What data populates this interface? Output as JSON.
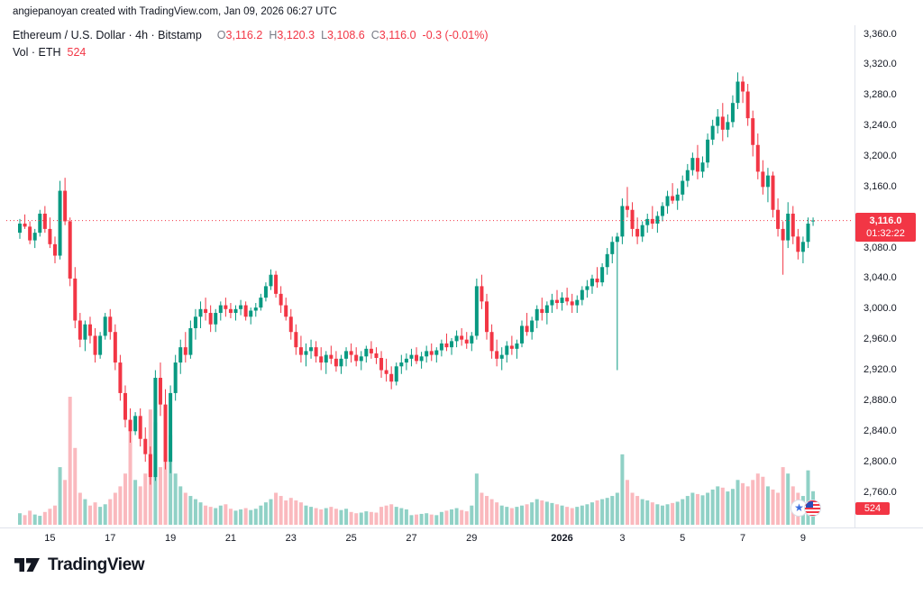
{
  "attribution": "angiepanoyan created with TradingView.com, Jan 09, 2026 06:27 UTC",
  "legend": {
    "title": "Ethereum / U.S. Dollar · 4h · Bitstamp",
    "ohlc": {
      "o_label": "O",
      "o": "3,116.2",
      "h_label": "H",
      "h": "3,120.3",
      "l_label": "L",
      "l": "3,108.6",
      "c_label": "C",
      "c": "3,116.0",
      "change": "-0.3 (-0.01%)"
    },
    "vol_label": "Vol · ETH",
    "vol_value": "524"
  },
  "price_scale": {
    "current_label": "3,116.0",
    "countdown": "01:32:22",
    "vol_badge": "524"
  },
  "footer": {
    "logo_text": "TradingView"
  },
  "chart_data": {
    "type": "candlestick",
    "title": "Ethereum / U.S. Dollar",
    "interval": "4h",
    "exchange": "Bitstamp",
    "current_price": 3116.0,
    "ylim": [
      2760,
      3360
    ],
    "grid": false,
    "colors": {
      "up": "#089981",
      "down": "#f23645",
      "vol_up": "rgba(8,153,129,0.45)",
      "vol_down": "rgba(242,54,69,0.35)",
      "line": "#f23645"
    },
    "price_ticks": [
      {
        "label": "3,360.0",
        "value": 3360
      },
      {
        "label": "3,320.0",
        "value": 3320
      },
      {
        "label": "3,280.0",
        "value": 3280
      },
      {
        "label": "3,240.0",
        "value": 3240
      },
      {
        "label": "3,200.0",
        "value": 3200
      },
      {
        "label": "3,160.0",
        "value": 3160
      },
      {
        "label": "3,120.0",
        "value": 3120
      },
      {
        "label": "3,080.0",
        "value": 3080
      },
      {
        "label": "3,040.0",
        "value": 3040
      },
      {
        "label": "3,000.0",
        "value": 3000
      },
      {
        "label": "2,960.0",
        "value": 2960
      },
      {
        "label": "2,920.0",
        "value": 2920
      },
      {
        "label": "2,880.0",
        "value": 2880
      },
      {
        "label": "2,840.0",
        "value": 2840
      },
      {
        "label": "2,800.0",
        "value": 2800
      },
      {
        "label": "2,760.0",
        "value": 2760
      }
    ],
    "time_ticks": [
      {
        "label": "15",
        "idx": 6,
        "bold": false
      },
      {
        "label": "17",
        "idx": 18,
        "bold": false
      },
      {
        "label": "19",
        "idx": 30,
        "bold": false
      },
      {
        "label": "21",
        "idx": 42,
        "bold": false
      },
      {
        "label": "23",
        "idx": 54,
        "bold": false
      },
      {
        "label": "25",
        "idx": 66,
        "bold": false
      },
      {
        "label": "27",
        "idx": 78,
        "bold": false
      },
      {
        "label": "29",
        "idx": 90,
        "bold": false
      },
      {
        "label": "2026",
        "idx": 108,
        "bold": true
      },
      {
        "label": "3",
        "idx": 120,
        "bold": false
      },
      {
        "label": "5",
        "idx": 132,
        "bold": false
      },
      {
        "label": "7",
        "idx": 144,
        "bold": false
      },
      {
        "label": "9",
        "idx": 156,
        "bold": false
      }
    ],
    "candles": [
      [
        3100,
        3118,
        3092,
        3112
      ],
      [
        3112,
        3124,
        3105,
        3108
      ],
      [
        3108,
        3115,
        3085,
        3090
      ],
      [
        3090,
        3105,
        3080,
        3100
      ],
      [
        3100,
        3130,
        3095,
        3125
      ],
      [
        3125,
        3135,
        3100,
        3105
      ],
      [
        3105,
        3120,
        3080,
        3085
      ],
      [
        3085,
        3095,
        3060,
        3070
      ],
      [
        3070,
        3168,
        3065,
        3155
      ],
      [
        3155,
        3172,
        3110,
        3115
      ],
      [
        3115,
        3120,
        3030,
        3040
      ],
      [
        3040,
        3055,
        2975,
        2985
      ],
      [
        2985,
        2995,
        2950,
        2960
      ],
      [
        2960,
        2985,
        2945,
        2980
      ],
      [
        2980,
        2990,
        2955,
        2965
      ],
      [
        2965,
        2975,
        2930,
        2940
      ],
      [
        2940,
        2970,
        2935,
        2965
      ],
      [
        2965,
        2995,
        2960,
        2990
      ],
      [
        2990,
        3000,
        2960,
        2970
      ],
      [
        2970,
        2980,
        2920,
        2930
      ],
      [
        2930,
        2940,
        2880,
        2890
      ],
      [
        2890,
        2900,
        2845,
        2855
      ],
      [
        2855,
        2870,
        2825,
        2840
      ],
      [
        2840,
        2865,
        2835,
        2860
      ],
      [
        2860,
        2870,
        2820,
        2830
      ],
      [
        2830,
        2845,
        2800,
        2810
      ],
      [
        2810,
        2820,
        2770,
        2780
      ],
      [
        2780,
        2920,
        2775,
        2910
      ],
      [
        2910,
        2930,
        2860,
        2875
      ],
      [
        2875,
        2895,
        2790,
        2800
      ],
      [
        2800,
        2900,
        2785,
        2890
      ],
      [
        2890,
        2940,
        2880,
        2930
      ],
      [
        2930,
        2960,
        2915,
        2950
      ],
      [
        2950,
        2970,
        2930,
        2940
      ],
      [
        2940,
        2985,
        2935,
        2975
      ],
      [
        2975,
        3000,
        2960,
        2990
      ],
      [
        2990,
        3010,
        2975,
        3000
      ],
      [
        3000,
        3015,
        2985,
        2995
      ],
      [
        2995,
        3005,
        2970,
        2980
      ],
      [
        2980,
        3000,
        2970,
        2995
      ],
      [
        2995,
        3010,
        2985,
        3005
      ],
      [
        3005,
        3015,
        2990,
        3000
      ],
      [
        3000,
        3008,
        2988,
        2995
      ],
      [
        2995,
        3005,
        2985,
        3000
      ],
      [
        3000,
        3012,
        2992,
        3005
      ],
      [
        3005,
        3010,
        2985,
        2990
      ],
      [
        2990,
        3002,
        2980,
        2998
      ],
      [
        2998,
        3008,
        2990,
        3002
      ],
      [
        3002,
        3020,
        2998,
        3015
      ],
      [
        3015,
        3035,
        3010,
        3030
      ],
      [
        3030,
        3052,
        3025,
        3045
      ],
      [
        3045,
        3050,
        3015,
        3020
      ],
      [
        3020,
        3030,
        2995,
        3005
      ],
      [
        3005,
        3015,
        2985,
        2990
      ],
      [
        2990,
        3000,
        2960,
        2970
      ],
      [
        2970,
        2980,
        2940,
        2950
      ],
      [
        2950,
        2965,
        2930,
        2940
      ],
      [
        2940,
        2955,
        2925,
        2945
      ],
      [
        2945,
        2960,
        2935,
        2950
      ],
      [
        2950,
        2958,
        2930,
        2938
      ],
      [
        2938,
        2950,
        2920,
        2930
      ],
      [
        2930,
        2945,
        2915,
        2940
      ],
      [
        2940,
        2952,
        2928,
        2935
      ],
      [
        2935,
        2945,
        2918,
        2925
      ],
      [
        2925,
        2940,
        2915,
        2935
      ],
      [
        2935,
        2950,
        2925,
        2945
      ],
      [
        2945,
        2955,
        2930,
        2940
      ],
      [
        2940,
        2950,
        2925,
        2932
      ],
      [
        2932,
        2945,
        2920,
        2938
      ],
      [
        2938,
        2952,
        2930,
        2948
      ],
      [
        2948,
        2958,
        2935,
        2942
      ],
      [
        2942,
        2950,
        2928,
        2936
      ],
      [
        2936,
        2945,
        2910,
        2920
      ],
      [
        2920,
        2935,
        2905,
        2915
      ],
      [
        2915,
        2925,
        2895,
        2905
      ],
      [
        2905,
        2930,
        2900,
        2925
      ],
      [
        2925,
        2940,
        2915,
        2930
      ],
      [
        2930,
        2942,
        2920,
        2935
      ],
      [
        2935,
        2948,
        2925,
        2940
      ],
      [
        2940,
        2950,
        2928,
        2932
      ],
      [
        2932,
        2944,
        2922,
        2938
      ],
      [
        2938,
        2952,
        2930,
        2945
      ],
      [
        2945,
        2955,
        2932,
        2940
      ],
      [
        2940,
        2950,
        2930,
        2946
      ],
      [
        2946,
        2960,
        2938,
        2955
      ],
      [
        2955,
        2968,
        2945,
        2950
      ],
      [
        2950,
        2962,
        2940,
        2958
      ],
      [
        2958,
        2972,
        2950,
        2965
      ],
      [
        2965,
        2975,
        2952,
        2960
      ],
      [
        2960,
        2970,
        2948,
        2955
      ],
      [
        2955,
        2970,
        2945,
        2965
      ],
      [
        2965,
        3040,
        2960,
        3030
      ],
      [
        3030,
        3045,
        3000,
        3010
      ],
      [
        3010,
        3020,
        2960,
        2970
      ],
      [
        2970,
        2980,
        2935,
        2945
      ],
      [
        2945,
        2960,
        2925,
        2935
      ],
      [
        2935,
        2950,
        2920,
        2940
      ],
      [
        2940,
        2958,
        2930,
        2952
      ],
      [
        2952,
        2965,
        2940,
        2948
      ],
      [
        2948,
        2960,
        2935,
        2955
      ],
      [
        2955,
        2985,
        2950,
        2978
      ],
      [
        2978,
        2995,
        2965,
        2970
      ],
      [
        2970,
        2990,
        2960,
        2985
      ],
      [
        2985,
        3005,
        2975,
        3000
      ],
      [
        3000,
        3015,
        2985,
        2995
      ],
      [
        2995,
        3010,
        2980,
        3005
      ],
      [
        3005,
        3020,
        2995,
        3012
      ],
      [
        3012,
        3025,
        3000,
        3008
      ],
      [
        3008,
        3022,
        2998,
        3015
      ],
      [
        3015,
        3028,
        3005,
        3010
      ],
      [
        3010,
        3020,
        2995,
        3005
      ],
      [
        3005,
        3018,
        2995,
        3012
      ],
      [
        3012,
        3030,
        3005,
        3025
      ],
      [
        3025,
        3038,
        3015,
        3030
      ],
      [
        3030,
        3045,
        3020,
        3040
      ],
      [
        3040,
        3055,
        3028,
        3035
      ],
      [
        3035,
        3060,
        3030,
        3055
      ],
      [
        3055,
        3080,
        3045,
        3072
      ],
      [
        3072,
        3095,
        3060,
        3088
      ],
      [
        3088,
        3100,
        2920,
        3095
      ],
      [
        3095,
        3145,
        3085,
        3135
      ],
      [
        3135,
        3160,
        3120,
        3130
      ],
      [
        3130,
        3140,
        3095,
        3105
      ],
      [
        3105,
        3120,
        3085,
        3095
      ],
      [
        3095,
        3115,
        3088,
        3110
      ],
      [
        3110,
        3125,
        3100,
        3118
      ],
      [
        3118,
        3135,
        3105,
        3112
      ],
      [
        3112,
        3128,
        3100,
        3122
      ],
      [
        3122,
        3140,
        3115,
        3135
      ],
      [
        3135,
        3155,
        3125,
        3148
      ],
      [
        3148,
        3165,
        3138,
        3142
      ],
      [
        3142,
        3158,
        3130,
        3150
      ],
      [
        3150,
        3175,
        3142,
        3168
      ],
      [
        3168,
        3190,
        3160,
        3182
      ],
      [
        3182,
        3205,
        3175,
        3198
      ],
      [
        3198,
        3215,
        3170,
        3180
      ],
      [
        3180,
        3200,
        3172,
        3192
      ],
      [
        3192,
        3230,
        3185,
        3222
      ],
      [
        3222,
        3248,
        3215,
        3240
      ],
      [
        3240,
        3262,
        3230,
        3252
      ],
      [
        3252,
        3270,
        3220,
        3235
      ],
      [
        3235,
        3255,
        3225,
        3245
      ],
      [
        3245,
        3280,
        3238,
        3270
      ],
      [
        3270,
        3310,
        3262,
        3298
      ],
      [
        3298,
        3305,
        3270,
        3285
      ],
      [
        3285,
        3295,
        3240,
        3250
      ],
      [
        3250,
        3260,
        3200,
        3215
      ],
      [
        3215,
        3230,
        3170,
        3180
      ],
      [
        3180,
        3195,
        3150,
        3160
      ],
      [
        3160,
        3185,
        3140,
        3175
      ],
      [
        3175,
        3180,
        3120,
        3130
      ],
      [
        3130,
        3145,
        3095,
        3105
      ],
      [
        3105,
        3115,
        3045,
        3090
      ],
      [
        3090,
        3140,
        3080,
        3125
      ],
      [
        3125,
        3135,
        3085,
        3095
      ],
      [
        3095,
        3105,
        3065,
        3075
      ],
      [
        3075,
        3095,
        3060,
        3088
      ],
      [
        3088,
        3120,
        3080,
        3112
      ],
      [
        3116,
        3120,
        3109,
        3116
      ]
    ],
    "volumes": [
      180,
      150,
      220,
      160,
      140,
      200,
      250,
      300,
      900,
      700,
      2000,
      1200,
      500,
      400,
      300,
      350,
      280,
      320,
      400,
      500,
      600,
      800,
      1500,
      700,
      600,
      800,
      1800,
      1600,
      900,
      1100,
      1400,
      800,
      600,
      500,
      450,
      400,
      350,
      300,
      280,
      260,
      300,
      320,
      250,
      220,
      240,
      260,
      230,
      250,
      300,
      350,
      400,
      500,
      450,
      380,
      420,
      380,
      350,
      300,
      280,
      260,
      240,
      260,
      280,
      250,
      230,
      250,
      200,
      180,
      190,
      210,
      200,
      190,
      280,
      300,
      320,
      280,
      260,
      240,
      150,
      160,
      170,
      180,
      160,
      150,
      200,
      220,
      240,
      260,
      230,
      210,
      300,
      800,
      500,
      450,
      400,
      350,
      300,
      280,
      260,
      280,
      300,
      320,
      350,
      400,
      380,
      360,
      340,
      320,
      300,
      280,
      260,
      280,
      300,
      320,
      350,
      380,
      400,
      420,
      450,
      500,
      1100,
      700,
      500,
      450,
      400,
      380,
      350,
      320,
      300,
      320,
      340,
      360,
      400,
      450,
      500,
      480,
      460,
      500,
      550,
      600,
      580,
      520,
      560,
      700,
      650,
      600,
      700,
      800,
      750,
      600,
      550,
      500,
      900,
      800,
      600,
      500,
      450,
      850,
      524
    ]
  }
}
